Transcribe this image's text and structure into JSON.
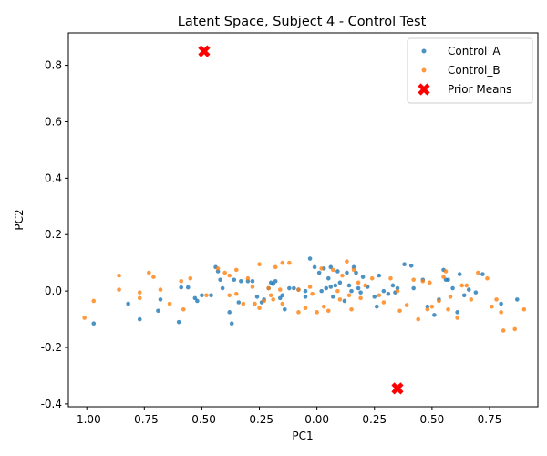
{
  "chart_data": {
    "type": "scatter",
    "title": "Latent Space, Subject 4 - Control Test",
    "xlabel": "PC1",
    "ylabel": "PC2",
    "xlim": [
      -1.08,
      0.96
    ],
    "ylim": [
      -0.41,
      0.915
    ],
    "xticks": [
      "-1.00",
      "-0.75",
      "-0.50",
      "-0.25",
      "0.00",
      "0.25",
      "0.50",
      "0.75"
    ],
    "xtick_values": [
      -1.0,
      -0.75,
      -0.5,
      -0.25,
      0.0,
      0.25,
      0.5,
      0.75
    ],
    "yticks": [
      "-0.4",
      "-0.2",
      "0.0",
      "0.2",
      "0.4",
      "0.6",
      "0.8"
    ],
    "ytick_values": [
      -0.4,
      -0.2,
      0.0,
      0.2,
      0.4,
      0.6,
      0.8
    ],
    "grid": false,
    "legend_position": "top-right",
    "series": [
      {
        "name": "Control_A",
        "color": "#1f77b4",
        "marker": "circle",
        "points": [
          [
            -0.97,
            -0.115
          ],
          [
            -0.82,
            -0.045
          ],
          [
            -0.77,
            -0.1
          ],
          [
            -0.69,
            -0.07
          ],
          [
            -0.68,
            -0.03
          ],
          [
            -0.6,
            -0.11
          ],
          [
            -0.59,
            0.013
          ],
          [
            -0.56,
            0.013
          ],
          [
            -0.53,
            -0.025
          ],
          [
            -0.52,
            -0.035
          ],
          [
            -0.5,
            -0.015
          ],
          [
            -0.46,
            -0.015
          ],
          [
            -0.44,
            0.085
          ],
          [
            -0.43,
            0.07
          ],
          [
            -0.42,
            0.04
          ],
          [
            -0.41,
            0.01
          ],
          [
            -0.38,
            -0.075
          ],
          [
            -0.37,
            -0.115
          ],
          [
            -0.36,
            0.04
          ],
          [
            -0.34,
            -0.04
          ],
          [
            -0.33,
            0.035
          ],
          [
            -0.3,
            0.035
          ],
          [
            -0.28,
            0.035
          ],
          [
            -0.26,
            -0.02
          ],
          [
            -0.24,
            -0.04
          ],
          [
            -0.23,
            -0.03
          ],
          [
            -0.21,
            0.01
          ],
          [
            -0.2,
            0.03
          ],
          [
            -0.19,
            0.025
          ],
          [
            -0.18,
            0.035
          ],
          [
            -0.16,
            -0.025
          ],
          [
            -0.15,
            -0.015
          ],
          [
            -0.14,
            -0.065
          ],
          [
            -0.12,
            0.01
          ],
          [
            -0.1,
            0.01
          ],
          [
            -0.08,
            0.005
          ],
          [
            -0.05,
            -0.02
          ],
          [
            -0.05,
            0.0
          ],
          [
            -0.03,
            0.115
          ],
          [
            -0.01,
            0.085
          ],
          [
            0.01,
            0.065
          ],
          [
            0.02,
            0.0
          ],
          [
            0.03,
            0.08
          ],
          [
            0.04,
            0.01
          ],
          [
            0.05,
            0.045
          ],
          [
            0.06,
            0.085
          ],
          [
            0.06,
            0.015
          ],
          [
            0.07,
            -0.02
          ],
          [
            0.08,
            0.02
          ],
          [
            0.09,
            0.07
          ],
          [
            0.1,
            0.03
          ],
          [
            0.12,
            -0.035
          ],
          [
            0.13,
            0.065
          ],
          [
            0.14,
            0.02
          ],
          [
            0.15,
            0.0
          ],
          [
            0.16,
            0.085
          ],
          [
            0.17,
            0.065
          ],
          [
            0.18,
            0.01
          ],
          [
            0.19,
            -0.005
          ],
          [
            0.2,
            0.05
          ],
          [
            0.22,
            0.015
          ],
          [
            0.25,
            -0.02
          ],
          [
            0.26,
            -0.055
          ],
          [
            0.27,
            0.055
          ],
          [
            0.29,
            0.0
          ],
          [
            0.31,
            -0.01
          ],
          [
            0.33,
            0.02
          ],
          [
            0.34,
            -0.005
          ],
          [
            0.35,
            0.01
          ],
          [
            0.38,
            0.095
          ],
          [
            0.41,
            0.09
          ],
          [
            0.42,
            0.01
          ],
          [
            0.46,
            0.04
          ],
          [
            0.48,
            -0.055
          ],
          [
            0.51,
            -0.085
          ],
          [
            0.53,
            -0.03
          ],
          [
            0.55,
            0.075
          ],
          [
            0.56,
            0.04
          ],
          [
            0.57,
            0.04
          ],
          [
            0.59,
            0.01
          ],
          [
            0.61,
            -0.075
          ],
          [
            0.62,
            0.06
          ],
          [
            0.64,
            -0.015
          ],
          [
            0.66,
            0.005
          ],
          [
            0.69,
            -0.005
          ],
          [
            0.72,
            0.06
          ],
          [
            0.8,
            -0.045
          ],
          [
            0.87,
            -0.03
          ]
        ]
      },
      {
        "name": "Control_B",
        "color": "#ff7f0e",
        "marker": "circle",
        "points": [
          [
            -1.01,
            -0.095
          ],
          [
            -0.97,
            -0.035
          ],
          [
            -0.86,
            0.055
          ],
          [
            -0.86,
            0.005
          ],
          [
            -0.77,
            -0.005
          ],
          [
            -0.77,
            -0.025
          ],
          [
            -0.73,
            0.065
          ],
          [
            -0.71,
            0.05
          ],
          [
            -0.68,
            0.005
          ],
          [
            -0.64,
            -0.045
          ],
          [
            -0.59,
            0.035
          ],
          [
            -0.58,
            -0.065
          ],
          [
            -0.55,
            0.045
          ],
          [
            -0.48,
            -0.015
          ],
          [
            -0.43,
            0.08
          ],
          [
            -0.4,
            0.065
          ],
          [
            -0.38,
            0.055
          ],
          [
            -0.38,
            -0.015
          ],
          [
            -0.35,
            0.075
          ],
          [
            -0.35,
            -0.01
          ],
          [
            -0.32,
            -0.045
          ],
          [
            -0.3,
            0.045
          ],
          [
            -0.28,
            0.015
          ],
          [
            -0.27,
            -0.045
          ],
          [
            -0.25,
            0.095
          ],
          [
            -0.25,
            -0.06
          ],
          [
            -0.23,
            -0.035
          ],
          [
            -0.21,
            0.01
          ],
          [
            -0.2,
            -0.015
          ],
          [
            -0.19,
            -0.03
          ],
          [
            -0.18,
            0.085
          ],
          [
            -0.16,
            0.005
          ],
          [
            -0.15,
            0.1
          ],
          [
            -0.15,
            -0.045
          ],
          [
            -0.12,
            0.1
          ],
          [
            -0.08,
            0.005
          ],
          [
            -0.08,
            -0.075
          ],
          [
            -0.05,
            -0.06
          ],
          [
            -0.03,
            0.015
          ],
          [
            -0.02,
            -0.01
          ],
          [
            0.0,
            -0.075
          ],
          [
            0.02,
            0.08
          ],
          [
            0.03,
            -0.055
          ],
          [
            0.05,
            -0.07
          ],
          [
            0.07,
            0.075
          ],
          [
            0.09,
            0.0
          ],
          [
            0.1,
            -0.03
          ],
          [
            0.11,
            0.055
          ],
          [
            0.13,
            0.105
          ],
          [
            0.14,
            -0.015
          ],
          [
            0.15,
            -0.065
          ],
          [
            0.16,
            0.075
          ],
          [
            0.18,
            0.03
          ],
          [
            0.19,
            -0.025
          ],
          [
            0.21,
            0.02
          ],
          [
            0.24,
            0.045
          ],
          [
            0.27,
            -0.015
          ],
          [
            0.29,
            -0.04
          ],
          [
            0.32,
            0.045
          ],
          [
            0.35,
            0.0
          ],
          [
            0.36,
            -0.07
          ],
          [
            0.39,
            -0.05
          ],
          [
            0.42,
            0.04
          ],
          [
            0.44,
            -0.1
          ],
          [
            0.46,
            0.035
          ],
          [
            0.48,
            -0.065
          ],
          [
            0.49,
            0.03
          ],
          [
            0.5,
            -0.055
          ],
          [
            0.53,
            -0.035
          ],
          [
            0.55,
            0.05
          ],
          [
            0.56,
            0.07
          ],
          [
            0.57,
            -0.065
          ],
          [
            0.58,
            -0.02
          ],
          [
            0.61,
            -0.095
          ],
          [
            0.63,
            0.02
          ],
          [
            0.65,
            0.02
          ],
          [
            0.67,
            -0.03
          ],
          [
            0.7,
            0.065
          ],
          [
            0.74,
            0.045
          ],
          [
            0.76,
            -0.055
          ],
          [
            0.78,
            -0.03
          ],
          [
            0.8,
            -0.075
          ],
          [
            0.81,
            -0.14
          ],
          [
            0.86,
            -0.135
          ],
          [
            0.9,
            -0.065
          ]
        ]
      },
      {
        "name": "Prior Means",
        "color": "#ff0000",
        "marker": "x",
        "points": [
          [
            -0.49,
            0.85
          ],
          [
            0.35,
            -0.345
          ]
        ]
      }
    ]
  }
}
